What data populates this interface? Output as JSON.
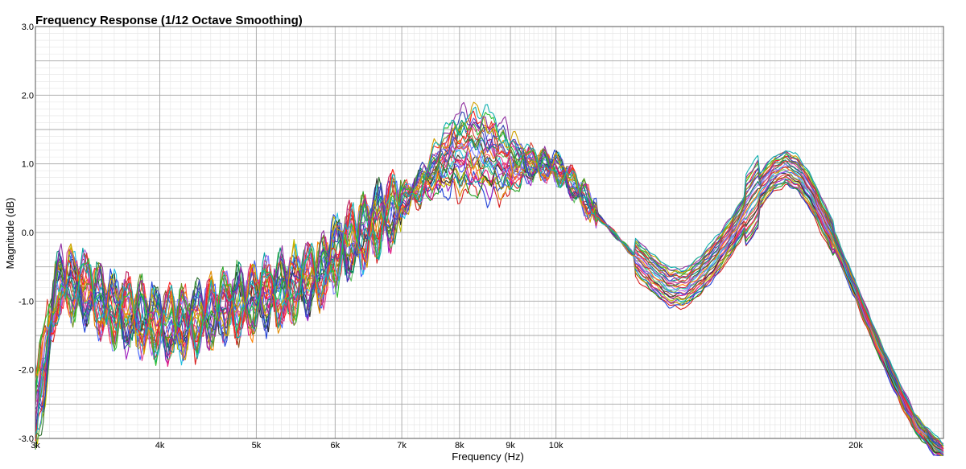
{
  "chart_data": {
    "type": "line",
    "title": "Frequency Response (1/12 Octave Smoothing)",
    "xlabel": "Frequency (Hz)",
    "ylabel": "Magnitude (dB)",
    "x_scale": "log",
    "xlim": [
      3000,
      24500
    ],
    "ylim": [
      -3.0,
      3.0
    ],
    "grid": true,
    "x_ticks": [
      {
        "value": 3000,
        "label": "3k"
      },
      {
        "value": 4000,
        "label": "4k"
      },
      {
        "value": 5000,
        "label": "5k"
      },
      {
        "value": 6000,
        "label": "6k"
      },
      {
        "value": 7000,
        "label": "7k"
      },
      {
        "value": 8000,
        "label": "8k"
      },
      {
        "value": 9000,
        "label": "9k"
      },
      {
        "value": 10000,
        "label": "10k"
      },
      {
        "value": 20000,
        "label": "20k"
      }
    ],
    "y_ticks": [
      {
        "value": -3.0,
        "label": "-3.0"
      },
      {
        "value": -2.0,
        "label": "-2.0"
      },
      {
        "value": -1.0,
        "label": "-1.0"
      },
      {
        "value": 0.0,
        "label": "0.0"
      },
      {
        "value": 1.0,
        "label": "1.0"
      },
      {
        "value": 2.0,
        "label": "2.0"
      },
      {
        "value": 3.0,
        "label": "3.0"
      }
    ],
    "series_colors": [
      "#d81e1e",
      "#1e3fd8",
      "#20a020",
      "#e08a00",
      "#a020c0",
      "#00a0a0",
      "#c0c000",
      "#e0107a",
      "#8b5a2b",
      "#303030",
      "#ff4040",
      "#4060ff",
      "#60c060",
      "#b060e0",
      "#20c0e0",
      "#ff8000",
      "#c02060",
      "#2f6f2f",
      "#8080ff",
      "#e04090",
      "#009070",
      "#d84030",
      "#5050d0",
      "#709020",
      "#ff2020",
      "#3040b0",
      "#2fbf2f",
      "#d0a000",
      "#9030a0",
      "#10b0b0"
    ],
    "base_curve": {
      "x": [
        3000,
        3050,
        3200,
        3400,
        3600,
        3800,
        4000,
        4300,
        4600,
        5000,
        5400,
        5800,
        6000,
        6300,
        6600,
        7000,
        7300,
        7600,
        7900,
        8200,
        8500,
        8800,
        9200,
        9600,
        10000,
        10500,
        11000,
        11500,
        12000,
        12500,
        13000,
        13500,
        14000,
        14500,
        15000,
        15500,
        16000,
        16500,
        17000,
        17500,
        18000,
        19000,
        20000,
        21000,
        22000,
        23000,
        24000,
        24500
      ],
      "y": [
        -1.0,
        -1.05,
        -0.7,
        -0.85,
        -1.15,
        -1.2,
        -1.35,
        -1.3,
        -1.1,
        -0.95,
        -0.8,
        -0.6,
        -0.3,
        -0.1,
        0.15,
        0.45,
        0.65,
        0.95,
        1.15,
        1.2,
        1.15,
        1.05,
        1.0,
        1.0,
        0.95,
        0.65,
        0.25,
        -0.05,
        -0.35,
        -0.6,
        -0.8,
        -0.8,
        -0.6,
        -0.35,
        -0.05,
        0.3,
        0.6,
        0.85,
        0.95,
        0.85,
        0.6,
        -0.1,
        -0.85,
        -1.6,
        -2.25,
        -2.8,
        -3.1,
        -3.2
      ]
    },
    "series_count": 30
  }
}
